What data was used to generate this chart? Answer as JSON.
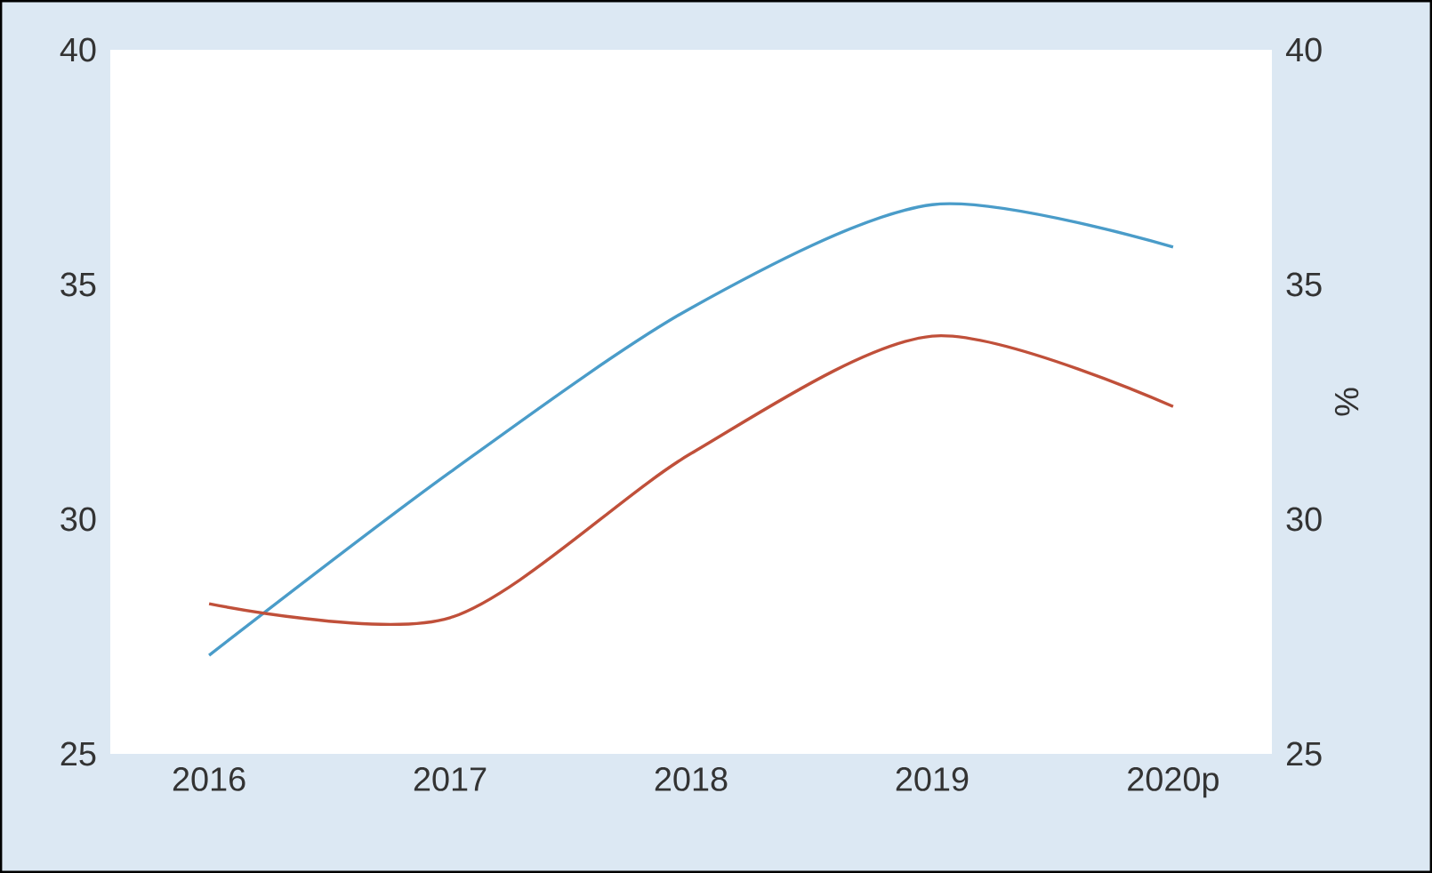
{
  "chart_data": {
    "type": "line",
    "categories": [
      "2016",
      "2017",
      "2018",
      "2019",
      "2020p"
    ],
    "series": [
      {
        "color": "#4a9cc9",
        "values": [
          27.1,
          31.0,
          34.5,
          36.7,
          35.8
        ]
      },
      {
        "color": "#c0503a",
        "values": [
          28.2,
          27.9,
          31.4,
          33.9,
          32.4
        ]
      }
    ],
    "ylim": [
      25,
      40
    ],
    "yticks": [
      25,
      30,
      35,
      40
    ],
    "y2lim": [
      25,
      40
    ],
    "y2ticks": [
      25,
      30,
      35,
      40
    ],
    "y2label": "%"
  }
}
